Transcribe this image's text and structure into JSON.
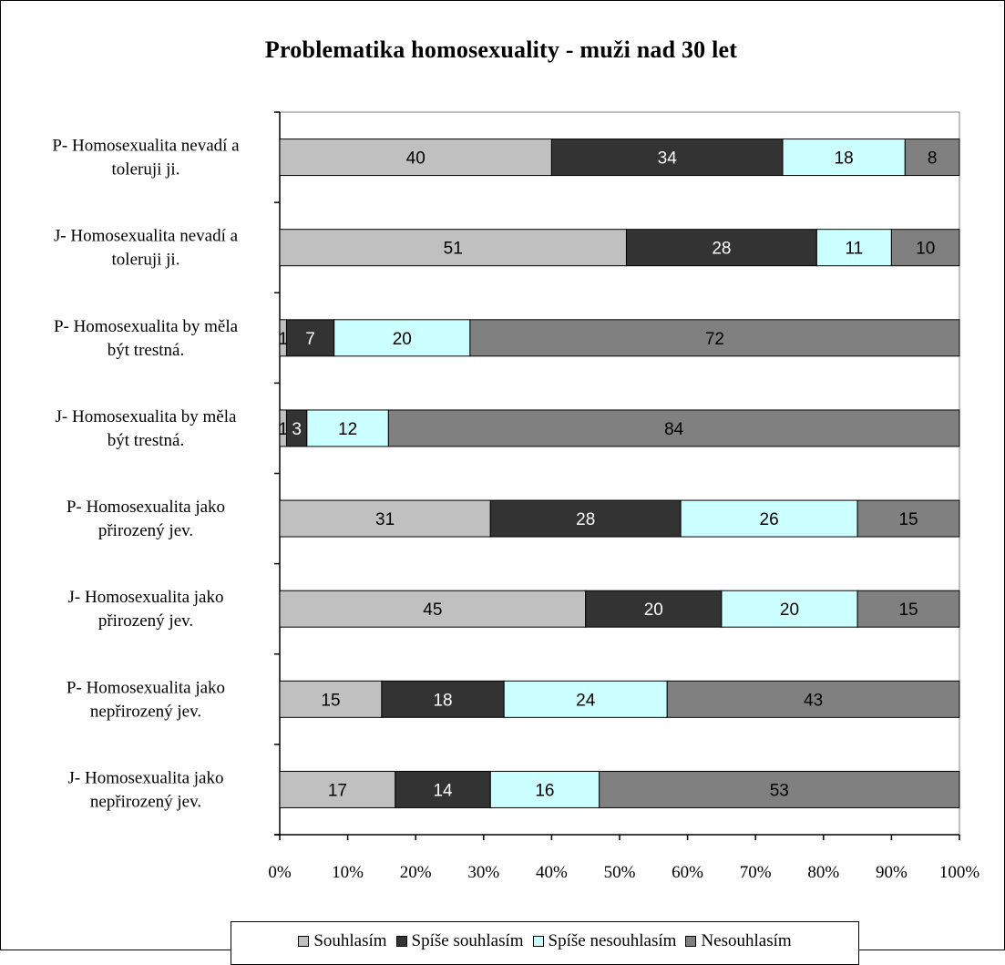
{
  "chart_data": {
    "type": "bar",
    "orientation": "horizontal",
    "stacking": "percent",
    "title": "Problematika homosexuality - muži nad 30 let",
    "categories": [
      "P- Homosexualita nevadí a toleruji ji.",
      "J- Homosexualita nevadí a toleruji ji.",
      "P- Homosexualita by měla být trestná.",
      "J- Homosexualita by měla být trestná.",
      "P- Homosexualita jako přirozený jev.",
      "J- Homosexualita jako přirozený jev.",
      "P- Homosexualita jako nepřirozený jev.",
      "J- Homosexualita jako nepřirozený jev."
    ],
    "category_lines": [
      [
        "P- Homosexualita nevadí a",
        "toleruji ji."
      ],
      [
        "J- Homosexualita nevadí a",
        "toleruji ji."
      ],
      [
        "P- Homosexualita by měla",
        "být trestná."
      ],
      [
        "J- Homosexualita by měla",
        "být trestná."
      ],
      [
        "P- Homosexualita jako",
        "přirozený jev."
      ],
      [
        "J- Homosexualita jako",
        "přirozený jev."
      ],
      [
        "P- Homosexualita jako",
        "nepřirozený jev."
      ],
      [
        "J- Homosexualita jako",
        "nepřirozený jev."
      ]
    ],
    "series": [
      {
        "name": "Souhlasím",
        "color": "#c0c0c0",
        "label_color": "#000000",
        "values": [
          40,
          51,
          1,
          1,
          31,
          45,
          15,
          17
        ]
      },
      {
        "name": "Spíše souhlasím",
        "color": "#333333",
        "label_color": "#ffffff",
        "values": [
          34,
          28,
          7,
          3,
          28,
          20,
          18,
          14
        ]
      },
      {
        "name": "Spíše nesouhlasím",
        "color": "#ccffff",
        "label_color": "#000000",
        "values": [
          18,
          11,
          20,
          12,
          26,
          20,
          24,
          16
        ]
      },
      {
        "name": "Nesouhlasím",
        "color": "#808080",
        "label_color": "#000000",
        "values": [
          8,
          10,
          72,
          84,
          15,
          15,
          43,
          53
        ]
      }
    ],
    "x_ticks": [
      "0%",
      "10%",
      "20%",
      "30%",
      "40%",
      "50%",
      "60%",
      "70%",
      "80%",
      "90%",
      "100%"
    ],
    "xlim": [
      0,
      100
    ],
    "xlabel": "",
    "ylabel": "",
    "grid": false,
    "legend_position": "bottom"
  }
}
